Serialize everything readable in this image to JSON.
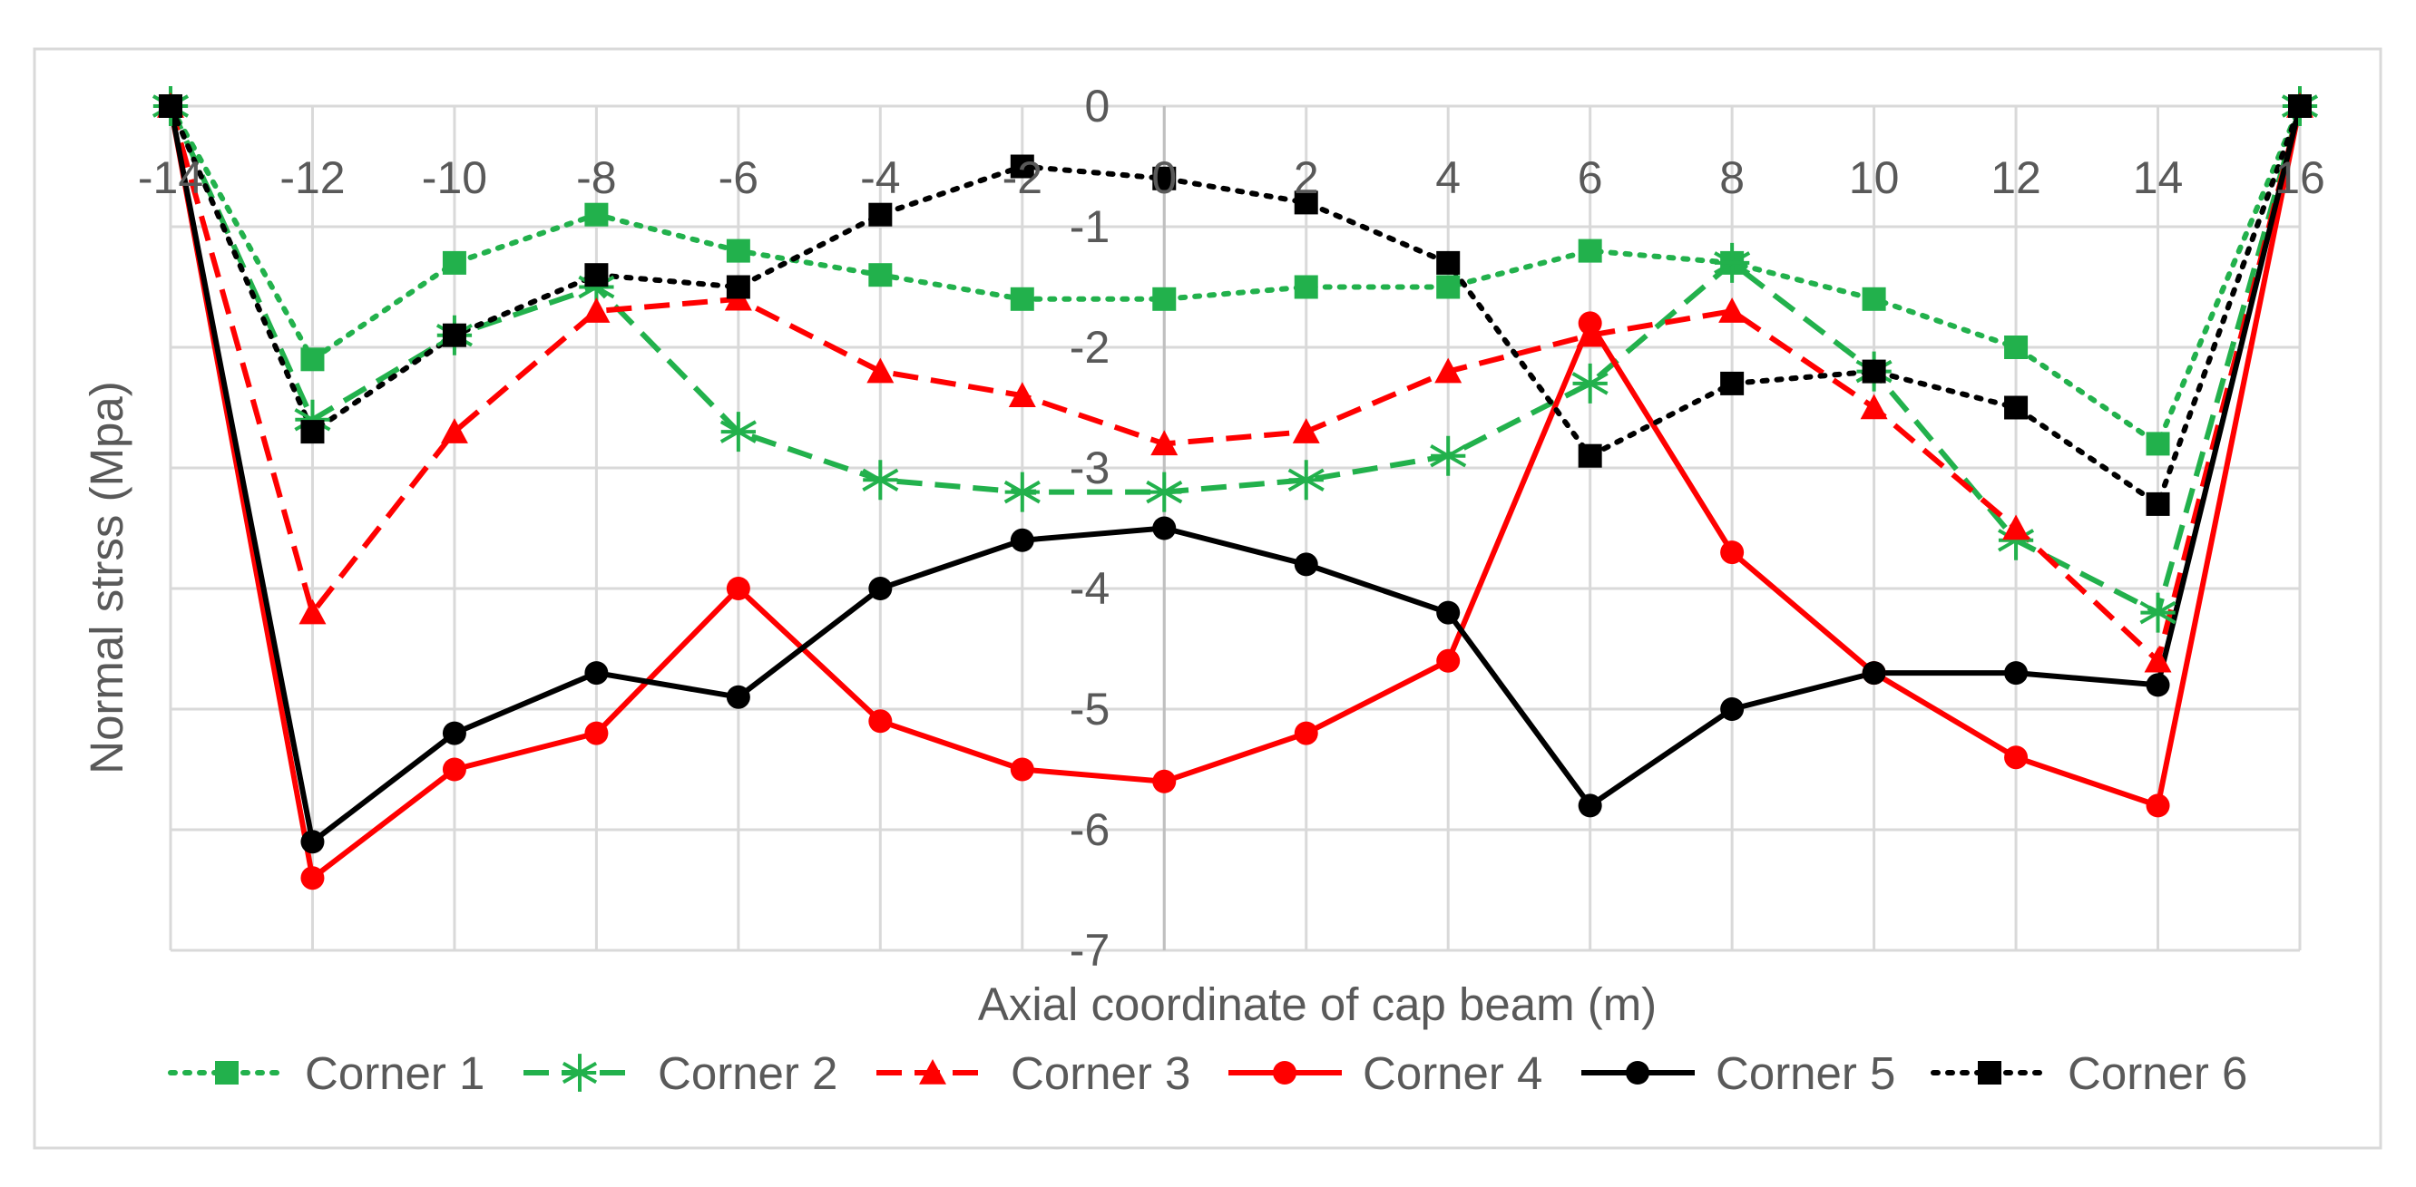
{
  "chart_data": {
    "type": "line",
    "title": "",
    "xlabel": "Axial coordinate of cap beam (m)",
    "ylabel": "Normal strss (Mpa)",
    "xlim": [
      -14,
      16
    ],
    "ylim": [
      -7,
      0
    ],
    "x_ticks": [
      -14,
      -12,
      -10,
      -8,
      -6,
      -4,
      -2,
      0,
      2,
      4,
      6,
      8,
      10,
      12,
      14,
      16
    ],
    "y_ticks": [
      0,
      -1,
      -2,
      -3,
      -4,
      -5,
      -6,
      -7
    ],
    "grid": true,
    "legend_position": "bottom",
    "x": [
      -14,
      -12,
      -10,
      -8,
      -6,
      -4,
      -2,
      0,
      2,
      4,
      6,
      8,
      10,
      12,
      14,
      16
    ],
    "series": [
      {
        "name": "Corner 1",
        "color": "#22b14c",
        "line_style": "dotted",
        "marker": "square",
        "values": [
          0,
          -2.1,
          -1.3,
          -0.9,
          -1.2,
          -1.4,
          -1.6,
          -1.6,
          -1.5,
          -1.5,
          -1.2,
          -1.3,
          -1.6,
          -2.0,
          -2.8,
          0
        ]
      },
      {
        "name": "Corner 2",
        "color": "#22b14c",
        "line_style": "dashed",
        "marker": "asterisk",
        "values": [
          0,
          -2.6,
          -1.9,
          -1.5,
          -2.7,
          -3.1,
          -3.2,
          -3.2,
          -3.1,
          -2.9,
          -2.3,
          -1.3,
          -2.2,
          -3.6,
          -4.2,
          0
        ]
      },
      {
        "name": "Corner 3",
        "color": "#ff0000",
        "line_style": "dashed",
        "marker": "triangle",
        "values": [
          0,
          -4.2,
          -2.7,
          -1.7,
          -1.6,
          -2.2,
          -2.4,
          -2.8,
          -2.7,
          -2.2,
          -1.9,
          -1.7,
          -2.5,
          -3.5,
          -4.6,
          0
        ]
      },
      {
        "name": "Corner 4",
        "color": "#ff0000",
        "line_style": "solid",
        "marker": "circle",
        "values": [
          0,
          -6.4,
          -5.5,
          -5.2,
          -4.0,
          -5.1,
          -5.5,
          -5.6,
          -5.2,
          -4.6,
          -1.8,
          -3.7,
          -4.7,
          -5.4,
          -5.8,
          0
        ]
      },
      {
        "name": "Corner 5",
        "color": "#000000",
        "line_style": "solid",
        "marker": "circle",
        "values": [
          0,
          -6.1,
          -5.2,
          -4.7,
          -4.9,
          -4.0,
          -3.6,
          -3.5,
          -3.8,
          -4.2,
          -5.8,
          -5.0,
          -4.7,
          -4.7,
          -4.8,
          0
        ]
      },
      {
        "name": "Corner 6",
        "color": "#000000",
        "line_style": "dotted",
        "marker": "square",
        "values": [
          0,
          -2.7,
          -1.9,
          -1.4,
          -1.5,
          -0.9,
          -0.5,
          -0.6,
          -0.8,
          -1.3,
          -2.9,
          -2.3,
          -2.2,
          -2.5,
          -3.3,
          0
        ]
      }
    ]
  }
}
